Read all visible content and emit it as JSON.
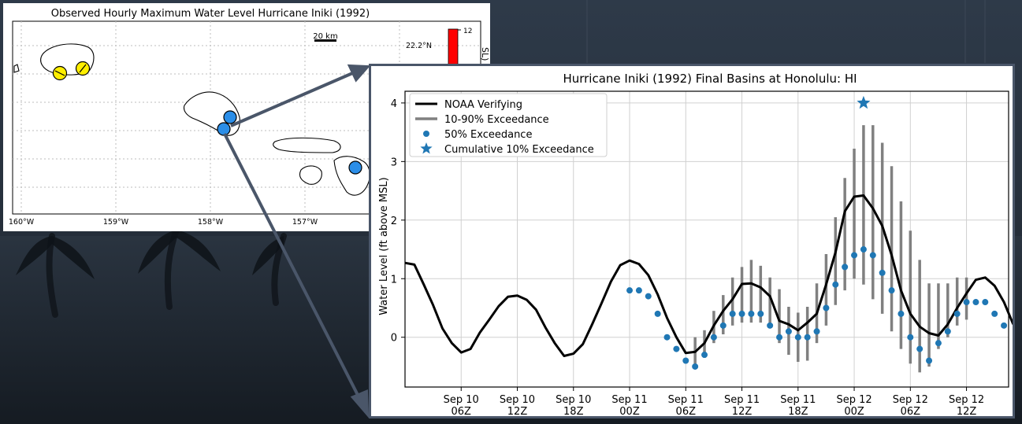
{
  "map": {
    "title": "Observed Hourly Maximum Water Level Hurricane Iniki (1992)",
    "scale_label": "20 km",
    "lat_labels": [
      "22.2°N"
    ],
    "lon_labels": [
      "160°W",
      "159°W",
      "158°W",
      "157°W"
    ],
    "colorbar_tick": "12",
    "colorbar_label": "SL)",
    "colors": {
      "kauai_marker": "#ffef00",
      "oahu_marker": "#2b8ee8",
      "maui_marker": "#2b8ee8",
      "colorbar": "#ff0000"
    }
  },
  "chart_data": {
    "type": "line",
    "title": "Hurricane Iniki (1992) Final Basins at  Honolulu: HI",
    "ylabel": "Water Level (ft above MSL)",
    "xlabel": "",
    "x_unit": "hours since Sep 10 00Z",
    "xlim": [
      0,
      64
    ],
    "ylim": [
      -0.85,
      4.2
    ],
    "yticks": [
      0,
      1,
      2,
      3,
      4
    ],
    "grid": true,
    "legend_position": "top-left",
    "x_ticks": [
      {
        "x": 6,
        "line1": "Sep 10",
        "line2": "06Z"
      },
      {
        "x": 12,
        "line1": "Sep 10",
        "line2": "12Z"
      },
      {
        "x": 18,
        "line1": "Sep 10",
        "line2": "18Z"
      },
      {
        "x": 24,
        "line1": "Sep 11",
        "line2": "00Z"
      },
      {
        "x": 30,
        "line1": "Sep 11",
        "line2": "06Z"
      },
      {
        "x": 36,
        "line1": "Sep 11",
        "line2": "12Z"
      },
      {
        "x": 42,
        "line1": "Sep 11",
        "line2": "18Z"
      },
      {
        "x": 48,
        "line1": "Sep 12",
        "line2": "00Z"
      },
      {
        "x": 54,
        "line1": "Sep 12",
        "line2": "06Z"
      },
      {
        "x": 60,
        "line1": "Sep 12",
        "line2": "12Z"
      }
    ],
    "legend": [
      {
        "label": "NOAA Verifying",
        "kind": "line"
      },
      {
        "label": "10-90% Exceedance",
        "kind": "bar"
      },
      {
        "label": "50% Exceedance",
        "kind": "dot"
      },
      {
        "label": "Cumulative 10% Exceedance",
        "kind": "star"
      }
    ],
    "colors": {
      "verifying": "#000000",
      "exceedance_range": "#808080",
      "median": "#1f77b4",
      "star": "#1f77b4"
    },
    "series": [
      {
        "name": "NOAA Verifying",
        "points": [
          [
            0,
            1.27
          ],
          [
            1,
            1.24
          ],
          [
            2,
            0.9
          ],
          [
            3,
            0.55
          ],
          [
            4,
            0.15
          ],
          [
            5,
            -0.1
          ],
          [
            6,
            -0.26
          ],
          [
            7,
            -0.2
          ],
          [
            8,
            0.08
          ],
          [
            9,
            0.3
          ],
          [
            10,
            0.53
          ],
          [
            11,
            0.69
          ],
          [
            12,
            0.71
          ],
          [
            13,
            0.64
          ],
          [
            14,
            0.47
          ],
          [
            15,
            0.17
          ],
          [
            16,
            -0.1
          ],
          [
            17,
            -0.32
          ],
          [
            18,
            -0.28
          ],
          [
            19,
            -0.12
          ],
          [
            20,
            0.22
          ],
          [
            21,
            0.58
          ],
          [
            22,
            0.95
          ],
          [
            23,
            1.23
          ],
          [
            24,
            1.31
          ],
          [
            25,
            1.25
          ],
          [
            26,
            1.06
          ],
          [
            27,
            0.73
          ],
          [
            28,
            0.33
          ],
          [
            29,
            0.0
          ],
          [
            30,
            -0.27
          ],
          [
            31,
            -0.25
          ],
          [
            32,
            -0.1
          ],
          [
            33,
            0.2
          ],
          [
            34,
            0.45
          ],
          [
            35,
            0.65
          ],
          [
            36,
            0.91
          ],
          [
            37,
            0.92
          ],
          [
            38,
            0.85
          ],
          [
            39,
            0.7
          ],
          [
            40,
            0.28
          ],
          [
            41,
            0.22
          ],
          [
            42,
            0.12
          ],
          [
            43,
            0.25
          ],
          [
            44,
            0.4
          ],
          [
            45,
            0.9
          ],
          [
            46,
            1.45
          ],
          [
            47,
            2.15
          ],
          [
            48,
            2.4
          ],
          [
            49,
            2.42
          ],
          [
            50,
            2.2
          ],
          [
            51,
            1.9
          ],
          [
            52,
            1.4
          ],
          [
            53,
            0.8
          ],
          [
            54,
            0.4
          ],
          [
            55,
            0.18
          ],
          [
            56,
            0.07
          ],
          [
            57,
            0.03
          ],
          [
            58,
            0.22
          ],
          [
            59,
            0.5
          ],
          [
            60,
            0.75
          ],
          [
            61,
            0.98
          ],
          [
            62,
            1.02
          ],
          [
            63,
            0.88
          ],
          [
            64,
            0.6
          ],
          [
            65,
            0.22
          ]
        ]
      },
      {
        "name": "50% Exceedance",
        "points": [
          [
            24,
            0.8
          ],
          [
            25,
            0.8
          ],
          [
            26,
            0.7
          ],
          [
            27,
            0.4
          ],
          [
            28,
            0.0
          ],
          [
            29,
            -0.2
          ],
          [
            30,
            -0.4
          ],
          [
            31,
            -0.5
          ],
          [
            32,
            -0.3
          ],
          [
            33,
            0.0
          ],
          [
            34,
            0.2
          ],
          [
            35,
            0.4
          ],
          [
            36,
            0.4
          ],
          [
            37,
            0.4
          ],
          [
            38,
            0.4
          ],
          [
            39,
            0.2
          ],
          [
            40,
            0.0
          ],
          [
            41,
            0.1
          ],
          [
            42,
            0.0
          ],
          [
            43,
            0.0
          ],
          [
            44,
            0.1
          ],
          [
            45,
            0.5
          ],
          [
            46,
            0.9
          ],
          [
            47,
            1.2
          ],
          [
            48,
            1.4
          ],
          [
            49,
            1.5
          ],
          [
            50,
            1.4
          ],
          [
            51,
            1.1
          ],
          [
            52,
            0.8
          ],
          [
            53,
            0.4
          ],
          [
            54,
            0.0
          ],
          [
            55,
            -0.2
          ],
          [
            56,
            -0.4
          ],
          [
            57,
            -0.1
          ],
          [
            58,
            0.1
          ],
          [
            59,
            0.4
          ],
          [
            60,
            0.6
          ],
          [
            61,
            0.6
          ],
          [
            62,
            0.6
          ],
          [
            63,
            0.4
          ],
          [
            64,
            0.2
          ]
        ]
      },
      {
        "name": "10-90% Exceedance",
        "ranges": [
          [
            31,
            -0.5,
            0.0
          ],
          [
            32,
            -0.35,
            0.12
          ],
          [
            33,
            -0.1,
            0.45
          ],
          [
            34,
            0.05,
            0.72
          ],
          [
            35,
            0.2,
            1.02
          ],
          [
            36,
            0.25,
            1.2
          ],
          [
            37,
            0.25,
            1.32
          ],
          [
            38,
            0.25,
            1.22
          ],
          [
            39,
            0.15,
            1.02
          ],
          [
            40,
            -0.1,
            0.82
          ],
          [
            41,
            -0.3,
            0.52
          ],
          [
            42,
            -0.42,
            0.42
          ],
          [
            43,
            -0.4,
            0.52
          ],
          [
            44,
            -0.1,
            0.92
          ],
          [
            45,
            0.2,
            1.42
          ],
          [
            46,
            0.55,
            2.05
          ],
          [
            47,
            0.8,
            2.72
          ],
          [
            48,
            1.0,
            3.22
          ],
          [
            49,
            0.9,
            3.62
          ],
          [
            50,
            0.65,
            3.62
          ],
          [
            51,
            0.4,
            3.32
          ],
          [
            52,
            0.1,
            2.92
          ],
          [
            53,
            -0.2,
            2.32
          ],
          [
            54,
            -0.45,
            1.82
          ],
          [
            55,
            -0.6,
            1.32
          ],
          [
            56,
            -0.5,
            0.92
          ],
          [
            57,
            -0.2,
            0.92
          ],
          [
            58,
            0.0,
            0.92
          ],
          [
            59,
            0.2,
            1.02
          ],
          [
            60,
            0.3,
            1.02
          ]
        ]
      },
      {
        "name": "Cumulative 10% Exceedance",
        "points": [
          [
            49,
            4.0
          ]
        ]
      }
    ]
  }
}
